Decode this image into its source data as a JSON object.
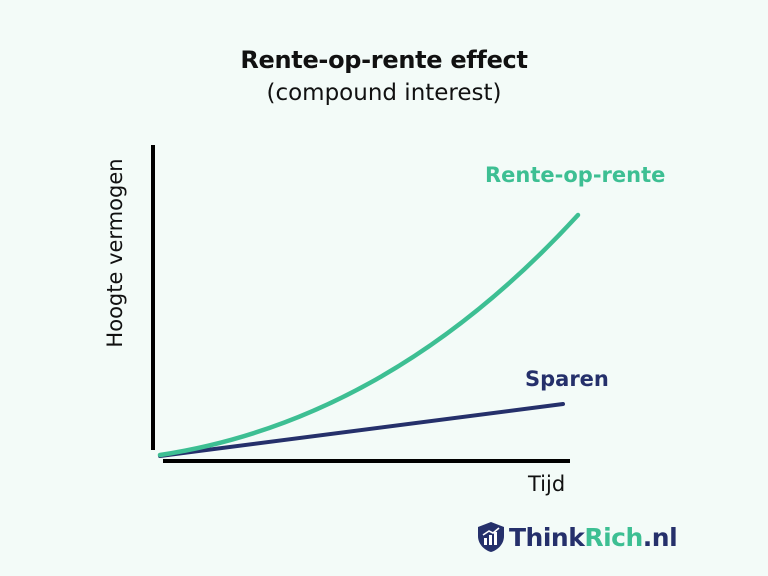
{
  "title": "Rente-op-rente effect",
  "subtitle": "(compound interest)",
  "y_axis_label": "Hoogte vermogen",
  "x_axis_label": "Tijd",
  "series": [
    {
      "name": "Rente-op-rente",
      "shape": "exponential",
      "color": "#3dbf93"
    },
    {
      "name": "Sparen",
      "shape": "linear",
      "color": "#25306b"
    }
  ],
  "logo": {
    "part1": "Think",
    "part2": "Rich",
    "part3": ".nl",
    "icon": "shield-chart-icon"
  },
  "colors": {
    "background": "#f3fbf8",
    "green": "#3dbf93",
    "navy": "#25306b",
    "axis": "#000000"
  }
}
